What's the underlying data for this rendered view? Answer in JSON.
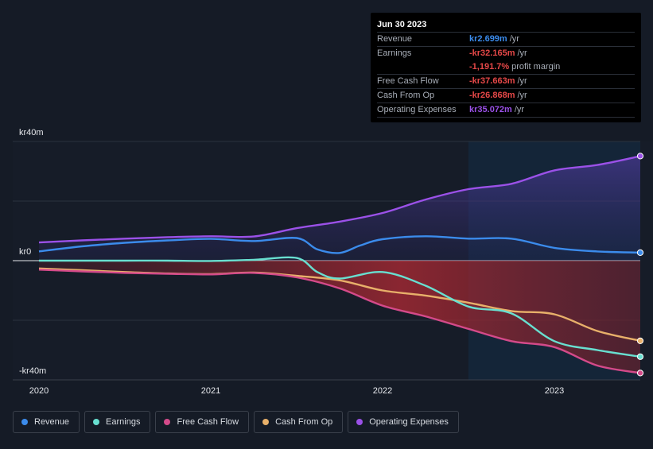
{
  "chart_data": {
    "type": "area",
    "y_labels": {
      "top": "kr40m",
      "zero": "kr0",
      "bottom": "-kr40m"
    },
    "ylim": [
      -40,
      40
    ],
    "xlim": [
      2020.0,
      2023.5
    ],
    "x_ticks": [
      {
        "value": 2020,
        "label": "2020"
      },
      {
        "value": 2021,
        "label": "2021"
      },
      {
        "value": 2022,
        "label": "2022"
      },
      {
        "value": 2023,
        "label": "2023"
      }
    ],
    "forecast_start": 2022.5,
    "series": [
      {
        "name": "Revenue",
        "color": "#3b8beb",
        "fill": "positive",
        "points": [
          [
            2020.0,
            3.1
          ],
          [
            2020.25,
            4.8
          ],
          [
            2020.5,
            6.0
          ],
          [
            2020.75,
            6.8
          ],
          [
            2021.0,
            7.3
          ],
          [
            2021.25,
            6.6
          ],
          [
            2021.5,
            7.6
          ],
          [
            2021.62,
            3.8
          ],
          [
            2021.75,
            2.6
          ],
          [
            2021.87,
            5.1
          ],
          [
            2022.0,
            7.2
          ],
          [
            2022.25,
            8.2
          ],
          [
            2022.5,
            7.4
          ],
          [
            2022.75,
            7.4
          ],
          [
            2023.0,
            4.3
          ],
          [
            2023.25,
            3.1
          ],
          [
            2023.5,
            2.7
          ]
        ]
      },
      {
        "name": "Earnings",
        "color": "#68dfd0",
        "fill": "none",
        "points": [
          [
            2020.0,
            0.0
          ],
          [
            2020.25,
            0.0
          ],
          [
            2020.5,
            0.0
          ],
          [
            2020.75,
            0.0
          ],
          [
            2021.0,
            -0.1
          ],
          [
            2021.25,
            0.3
          ],
          [
            2021.5,
            0.9
          ],
          [
            2021.62,
            -3.8
          ],
          [
            2021.75,
            -6.0
          ],
          [
            2022.0,
            -3.8
          ],
          [
            2022.25,
            -8.4
          ],
          [
            2022.5,
            -15.4
          ],
          [
            2022.75,
            -17.7
          ],
          [
            2023.0,
            -27.0
          ],
          [
            2023.25,
            -30.0
          ],
          [
            2023.5,
            -32.2
          ]
        ]
      },
      {
        "name": "Free Cash Flow",
        "color": "#d44a8a",
        "fill": "negative",
        "points": [
          [
            2020.0,
            -3.0
          ],
          [
            2020.25,
            -3.6
          ],
          [
            2020.5,
            -4.1
          ],
          [
            2020.75,
            -4.4
          ],
          [
            2021.0,
            -4.6
          ],
          [
            2021.25,
            -4.1
          ],
          [
            2021.5,
            -5.6
          ],
          [
            2021.75,
            -9.3
          ],
          [
            2022.0,
            -15.1
          ],
          [
            2022.25,
            -18.7
          ],
          [
            2022.5,
            -22.9
          ],
          [
            2022.75,
            -27.0
          ],
          [
            2023.0,
            -29.0
          ],
          [
            2023.25,
            -35.2
          ],
          [
            2023.5,
            -37.7
          ]
        ]
      },
      {
        "name": "Cash From Op",
        "color": "#e8b06a",
        "fill": "none",
        "points": [
          [
            2020.0,
            -2.6
          ],
          [
            2020.25,
            -3.2
          ],
          [
            2020.5,
            -3.8
          ],
          [
            2020.75,
            -4.3
          ],
          [
            2021.0,
            -4.5
          ],
          [
            2021.25,
            -4.0
          ],
          [
            2021.5,
            -5.1
          ],
          [
            2021.75,
            -6.6
          ],
          [
            2022.0,
            -10.0
          ],
          [
            2022.25,
            -11.7
          ],
          [
            2022.5,
            -14.1
          ],
          [
            2022.75,
            -16.9
          ],
          [
            2023.0,
            -18.0
          ],
          [
            2023.25,
            -23.6
          ],
          [
            2023.5,
            -26.9
          ]
        ]
      },
      {
        "name": "Operating Expenses",
        "color": "#9b51e8",
        "fill": "positive",
        "points": [
          [
            2020.0,
            6.1
          ],
          [
            2020.25,
            6.8
          ],
          [
            2020.5,
            7.4
          ],
          [
            2020.75,
            7.9
          ],
          [
            2021.0,
            8.2
          ],
          [
            2021.25,
            8.1
          ],
          [
            2021.5,
            10.9
          ],
          [
            2021.75,
            13.1
          ],
          [
            2022.0,
            16.0
          ],
          [
            2022.25,
            20.5
          ],
          [
            2022.5,
            24.0
          ],
          [
            2022.75,
            25.8
          ],
          [
            2023.0,
            30.3
          ],
          [
            2023.25,
            32.1
          ],
          [
            2023.5,
            35.1
          ]
        ]
      }
    ]
  },
  "tooltip": {
    "date": "Jun 30 2023",
    "rows": [
      {
        "label": "Revenue",
        "value": "kr2.699m",
        "unit": "/yr",
        "color": "#3b8beb"
      },
      {
        "label": "Earnings",
        "value": "-kr32.165m",
        "unit": "/yr",
        "color": "#e64848"
      },
      {
        "label": "",
        "value": "-1,191.7%",
        "unit": "profit margin",
        "color": "#e64848"
      },
      {
        "label": "Free Cash Flow",
        "value": "-kr37.663m",
        "unit": "/yr",
        "color": "#e64848"
      },
      {
        "label": "Cash From Op",
        "value": "-kr26.868m",
        "unit": "/yr",
        "color": "#e64848"
      },
      {
        "label": "Operating Expenses",
        "value": "kr35.072m",
        "unit": "/yr",
        "color": "#9b51e8"
      }
    ]
  },
  "legend": [
    {
      "label": "Revenue",
      "color": "#3b8beb"
    },
    {
      "label": "Earnings",
      "color": "#68dfd0"
    },
    {
      "label": "Free Cash Flow",
      "color": "#d44a8a"
    },
    {
      "label": "Cash From Op",
      "color": "#e8b06a"
    },
    {
      "label": "Operating Expenses",
      "color": "#9b51e8"
    }
  ]
}
